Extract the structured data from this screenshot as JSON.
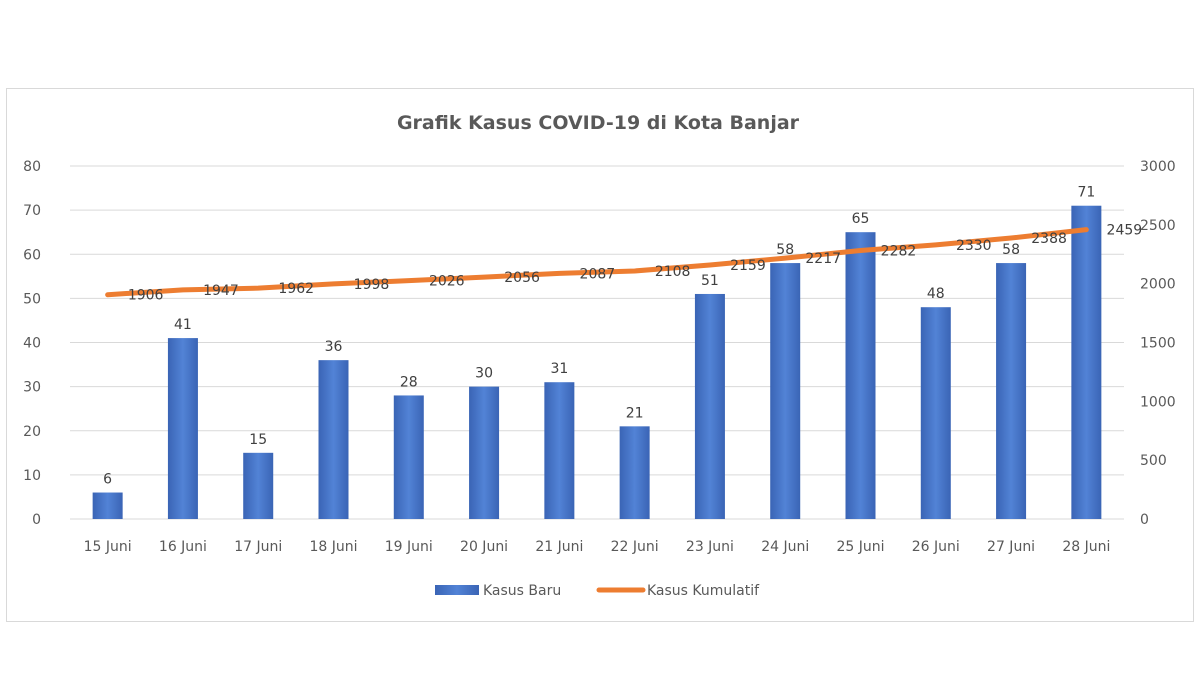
{
  "chart_data": {
    "type": "bar+line",
    "title": "Grafik Kasus COVID-19 di Kota Banjar",
    "categories": [
      "15 Juni",
      "16 Juni",
      "17 Juni",
      "18 Juni",
      "19 Juni",
      "20 Juni",
      "21 Juni",
      "22 Juni",
      "23 Juni",
      "24 Juni",
      "25 Juni",
      "26 Juni",
      "27 Juni",
      "28 Juni"
    ],
    "series": [
      {
        "name": "Kasus Baru",
        "type": "bar",
        "axis": "left",
        "color": "#4472c4",
        "values": [
          6,
          41,
          15,
          36,
          28,
          30,
          31,
          21,
          51,
          58,
          65,
          48,
          58,
          71
        ]
      },
      {
        "name": "Kasus Kumulatif",
        "type": "line",
        "axis": "right",
        "color": "#ed7d31",
        "values": [
          1906,
          1947,
          1962,
          1998,
          2026,
          2056,
          2087,
          2108,
          2159,
          2217,
          2282,
          2330,
          2388,
          2459
        ]
      }
    ],
    "y_left": {
      "min": 0,
      "max": 80,
      "ticks": [
        "0",
        "10",
        "20",
        "30",
        "40",
        "50",
        "60",
        "70",
        "80"
      ]
    },
    "y_right": {
      "min": 0,
      "max": 3000,
      "ticks": [
        "0",
        "500",
        "1000",
        "1500",
        "2000",
        "2500",
        "3000"
      ]
    },
    "grid": true,
    "legend": "bottom"
  }
}
